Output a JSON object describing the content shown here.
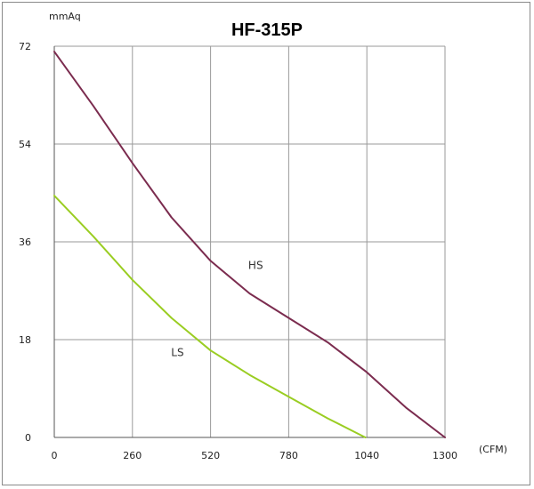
{
  "chart_data": {
    "type": "line",
    "title": "HF-315P",
    "ylabel": "mmAq",
    "xlabel": "(CFM)",
    "xlim": [
      0,
      1300
    ],
    "ylim": [
      0,
      72
    ],
    "xticks": [
      0,
      260,
      520,
      780,
      1040,
      1300
    ],
    "yticks": [
      0,
      18,
      36,
      54,
      72
    ],
    "xtick_labels": [
      "0",
      "260",
      "520",
      "780",
      "1040",
      "1300"
    ],
    "ytick_labels": [
      "0",
      "18",
      "36",
      "54",
      "72"
    ],
    "grid": true,
    "series": [
      {
        "name": "HS",
        "color": "#7b2c4f",
        "points": [
          [
            0,
            71
          ],
          [
            130,
            61
          ],
          [
            260,
            50.5
          ],
          [
            390,
            40.5
          ],
          [
            520,
            32.5
          ],
          [
            650,
            26.5
          ],
          [
            780,
            22
          ],
          [
            910,
            17.5
          ],
          [
            1040,
            12
          ],
          [
            1170,
            5.5
          ],
          [
            1300,
            0
          ]
        ]
      },
      {
        "name": "LS",
        "color": "#9acd22",
        "points": [
          [
            0,
            44.5
          ],
          [
            130,
            37
          ],
          [
            260,
            29
          ],
          [
            390,
            22
          ],
          [
            520,
            16
          ],
          [
            650,
            11.5
          ],
          [
            780,
            7.5
          ],
          [
            910,
            3.5
          ],
          [
            1035,
            0
          ]
        ]
      }
    ],
    "series_label_anchor": {
      "HS": [
        670,
        31
      ],
      "LS": [
        410,
        15
      ]
    }
  }
}
